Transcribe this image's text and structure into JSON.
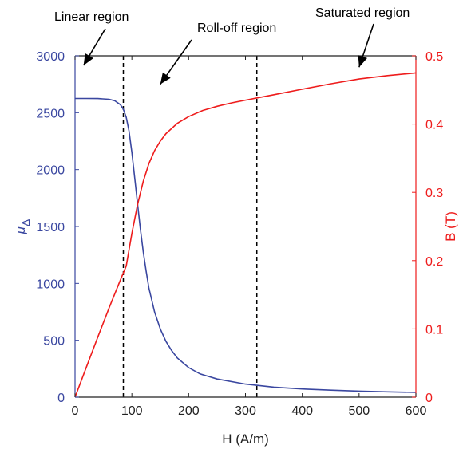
{
  "chart_data": {
    "type": "line",
    "title": "",
    "xlabel": "H (A/m)",
    "ylabel_left": "μ",
    "ylabel_left_sub": "Δ",
    "ylabel_right": "B (T)",
    "xlim": [
      0,
      600
    ],
    "ylim_left": [
      0,
      3000
    ],
    "ylim_right": [
      0,
      0.5
    ],
    "x_ticks": [
      0,
      100,
      200,
      300,
      400,
      500,
      600
    ],
    "y_left_ticks": [
      0,
      500,
      1000,
      1500,
      2000,
      2500,
      3000
    ],
    "y_right_ticks": [
      "0",
      "0.1",
      "0.2",
      "0.3",
      "0.4",
      "0.5"
    ],
    "grid": false,
    "colors": {
      "left_axis": "#3a47a0",
      "right_axis": "#ee1c1c",
      "mu_line": "#3a47a0",
      "b_line": "#ee1c1c"
    },
    "series": [
      {
        "axis": "left",
        "x": [
          0,
          20,
          40,
          60,
          70,
          80,
          85,
          90,
          95,
          100,
          105,
          110,
          115,
          120,
          125,
          130,
          140,
          150,
          160,
          170,
          180,
          200,
          220,
          250,
          300,
          350,
          400,
          450,
          500,
          550,
          600
        ],
        "values": [
          2625,
          2625,
          2624,
          2618,
          2605,
          2570,
          2530,
          2460,
          2340,
          2150,
          1930,
          1700,
          1480,
          1280,
          1110,
          960,
          750,
          600,
          490,
          410,
          345,
          260,
          205,
          160,
          115,
          88,
          72,
          62,
          53,
          47,
          42
        ]
      },
      {
        "axis": "right",
        "x": [
          0,
          20,
          40,
          60,
          80,
          90,
          100,
          110,
          120,
          130,
          140,
          150,
          160,
          180,
          200,
          225,
          250,
          275,
          300,
          325,
          350,
          400,
          450,
          500,
          550,
          600
        ],
        "values": [
          0,
          0.044,
          0.088,
          0.131,
          0.172,
          0.192,
          0.24,
          0.282,
          0.316,
          0.342,
          0.361,
          0.375,
          0.386,
          0.401,
          0.411,
          0.42,
          0.426,
          0.431,
          0.435,
          0.439,
          0.443,
          0.451,
          0.459,
          0.466,
          0.471,
          0.475
        ]
      }
    ],
    "vlines": [
      85,
      320
    ],
    "annotations": [
      {
        "text": "Linear region",
        "target": [
          15,
          3000
        ]
      },
      {
        "text": "Roll-off region",
        "target": [
          150,
          2750
        ]
      },
      {
        "text": "Saturated region",
        "target": [
          500,
          2900
        ]
      }
    ]
  }
}
